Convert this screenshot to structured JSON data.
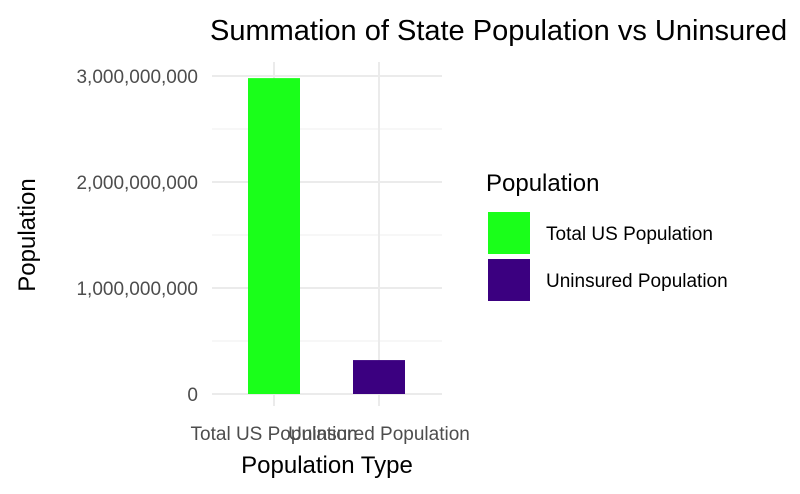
{
  "chart_data": {
    "type": "bar",
    "title": "Summation of State Population vs Uninsured",
    "xlabel": "Population Type",
    "ylabel": "Population",
    "categories": [
      "Total US Population",
      "Uninsured Population"
    ],
    "values": [
      2980000000,
      320000000
    ],
    "colors": [
      "#1aff1a",
      "#3b0080"
    ],
    "ylim": [
      0,
      3000000000
    ],
    "yticks": [
      0,
      1000000000,
      2000000000,
      3000000000
    ],
    "ytick_labels": [
      "0",
      "1,000,000,000",
      "2,000,000,000",
      "3,000,000,000"
    ],
    "grid": true,
    "legend": {
      "title": "Population",
      "position": "right",
      "entries": [
        "Total US Population",
        "Uninsured Population"
      ]
    }
  }
}
